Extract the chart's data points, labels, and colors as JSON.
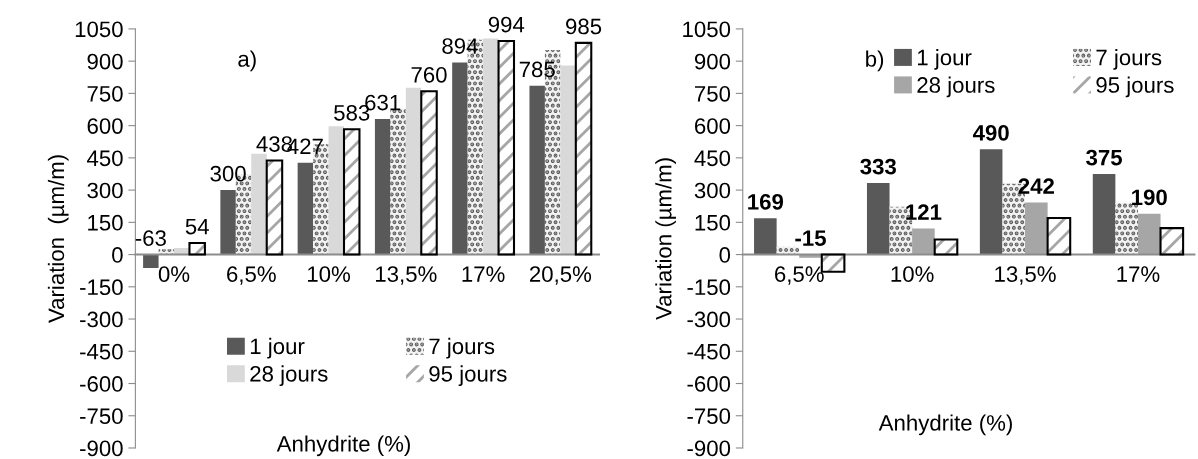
{
  "chart_data": [
    {
      "type": "bar",
      "annotations": [
        "a)"
      ],
      "xlabel": "Anhydrite (%)",
      "ylabel": "Variation  (µm/m)",
      "categories": [
        "0%",
        "6,5%",
        "10%",
        "13,5%",
        "17%",
        "20,5%"
      ],
      "ylim": [
        -900,
        1050
      ],
      "yticks": [
        -900,
        -750,
        -600,
        -450,
        -300,
        -150,
        0,
        150,
        300,
        450,
        600,
        750,
        900,
        1050
      ],
      "legend": "bottom",
      "grid": false,
      "series": [
        {
          "name": "1 jour",
          "color": "#595959",
          "values": [
            -63,
            300,
            427,
            631,
            894,
            785
          ],
          "value_labels": [
            "-63",
            "300",
            "427",
            "631",
            "894",
            "785"
          ]
        },
        {
          "name": "7 jours",
          "color": "#f2f2f2",
          "values": [
            25,
            374,
            513,
            678,
            1000,
            952
          ]
        },
        {
          "name": "28 jours",
          "color": "#d9d9d9",
          "values": [
            30,
            469,
            597,
            776,
            1005,
            880
          ]
        },
        {
          "name": "95 jours",
          "color": "#ffffff",
          "values": [
            54,
            438,
            583,
            760,
            994,
            985
          ],
          "value_labels": [
            "54",
            "438",
            "583",
            "760",
            "994",
            "985"
          ]
        }
      ]
    },
    {
      "type": "bar",
      "annotations": [
        "b)"
      ],
      "xlabel": "Anhydrite (%)",
      "ylabel": "Variation (µm/m)",
      "categories": [
        "6,5%",
        "10%",
        "13,5%",
        "17%"
      ],
      "ylim": [
        -900,
        1050
      ],
      "yticks": [
        -900,
        -750,
        -600,
        -450,
        -300,
        -150,
        0,
        150,
        300,
        450,
        600,
        750,
        900,
        1050
      ],
      "legend": "top right",
      "grid": false,
      "series": [
        {
          "name": "1 jour",
          "color": "#595959",
          "values": [
            169,
            333,
            490,
            375
          ],
          "value_labels": [
            "169",
            "333",
            "490",
            "375"
          ]
        },
        {
          "name": "7 jours",
          "color": "#f2f2f2",
          "values": [
            36,
            223,
            330,
            241
          ]
        },
        {
          "name": "28 jours",
          "color": "#a6a6a6",
          "values": [
            -15,
            121,
            242,
            190
          ],
          "value_labels": [
            "-15",
            "121",
            "242",
            "190"
          ]
        },
        {
          "name": "95 jours",
          "color": "#ffffff",
          "values": [
            -80,
            70,
            170,
            123
          ]
        }
      ]
    }
  ]
}
